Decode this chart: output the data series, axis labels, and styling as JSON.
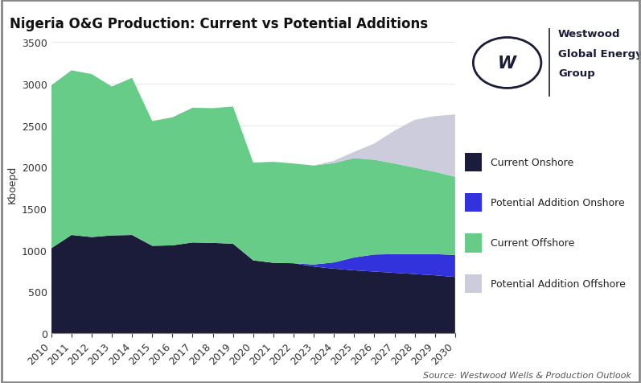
{
  "title": "Nigeria O&G Production: Current vs Potential Additions",
  "ylabel": "Kboepd",
  "source": "Source: Westwood Wells & Production Outlook",
  "years": [
    2010,
    2011,
    2012,
    2013,
    2014,
    2015,
    2016,
    2017,
    2018,
    2019,
    2020,
    2021,
    2022,
    2023,
    2024,
    2025,
    2026,
    2027,
    2028,
    2029,
    2030
  ],
  "current_onshore": [
    1020,
    1180,
    1155,
    1175,
    1180,
    1050,
    1055,
    1090,
    1085,
    1075,
    875,
    845,
    840,
    800,
    775,
    755,
    740,
    725,
    710,
    695,
    675
  ],
  "potential_addition_onshore": [
    0,
    0,
    0,
    0,
    0,
    0,
    0,
    0,
    0,
    0,
    0,
    0,
    0,
    25,
    75,
    155,
    205,
    225,
    240,
    255,
    265
  ],
  "current_offshore": [
    1960,
    1980,
    1960,
    1790,
    1890,
    1500,
    1540,
    1620,
    1620,
    1650,
    1175,
    1215,
    1200,
    1190,
    1195,
    1195,
    1140,
    1090,
    1040,
    990,
    940
  ],
  "potential_addition_offshore": [
    0,
    0,
    0,
    0,
    0,
    0,
    0,
    0,
    0,
    0,
    0,
    0,
    0,
    0,
    28,
    75,
    195,
    395,
    575,
    670,
    750
  ],
  "color_onshore": "#1b1b3a",
  "color_pot_onshore": "#3333dd",
  "color_offshore": "#66cc88",
  "color_pot_offshore": "#ccccdd",
  "ylim": [
    0,
    3600
  ],
  "yticks": [
    0,
    500,
    1000,
    1500,
    2000,
    2500,
    3000,
    3500
  ],
  "background_color": "#ffffff",
  "dark_color": "#1b1b3a",
  "title_fontsize": 12,
  "axis_fontsize": 9,
  "legend_fontsize": 9,
  "source_fontsize": 8,
  "logo_text": [
    "Westwood",
    "Global Energy",
    "Group"
  ],
  "legend_labels": [
    "Current Onshore",
    "Potential Addition Onshore",
    "Current Offshore",
    "Potential Addition Offshore"
  ]
}
